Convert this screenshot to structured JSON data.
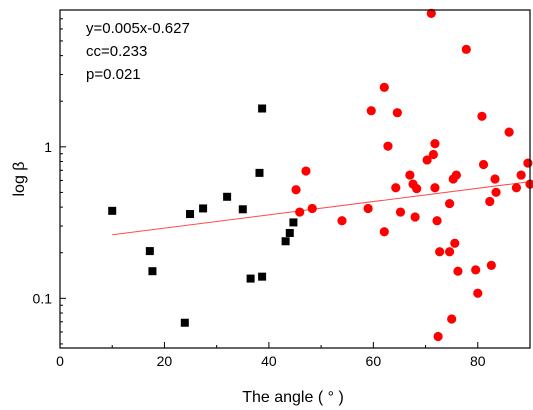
{
  "chart_data": {
    "type": "scatter",
    "xlabel": "The angle ( ° )",
    "ylabel": "log β",
    "xlim": [
      0,
      90
    ],
    "ylim": [
      0.047,
      8.0
    ],
    "y_scale": "log",
    "grid": false,
    "x_ticks": [
      0,
      20,
      40,
      60,
      80
    ],
    "y_ticks": [
      0.1,
      1
    ],
    "x_tick_labels": [
      "0",
      "20",
      "40",
      "60",
      "80"
    ],
    "y_tick_labels": [
      "0.1",
      "1"
    ],
    "annotations": [
      "y=0.005x-0.627",
      "cc=0.233",
      "p=0.021"
    ],
    "fit_line": {
      "x": [
        10,
        90
      ],
      "y": [
        0.263,
        0.589
      ],
      "color": "#ff4d4d"
    },
    "series": [
      {
        "marker": "square",
        "color": "#000000",
        "points": [
          [
            10.0,
            0.378
          ],
          [
            17.2,
            0.205
          ],
          [
            17.7,
            0.151
          ],
          [
            23.9,
            0.069
          ],
          [
            24.9,
            0.36
          ],
          [
            27.4,
            0.392
          ],
          [
            32.0,
            0.468
          ],
          [
            35.0,
            0.387
          ],
          [
            36.5,
            0.135
          ],
          [
            38.2,
            0.673
          ],
          [
            38.7,
            0.139
          ],
          [
            38.7,
            1.79
          ],
          [
            43.2,
            0.238
          ],
          [
            44.0,
            0.27
          ],
          [
            44.7,
            0.317
          ]
        ]
      },
      {
        "marker": "circle",
        "color": "#ff0000",
        "points": [
          [
            45.2,
            0.521
          ],
          [
            45.9,
            0.371
          ],
          [
            47.1,
            0.692
          ],
          [
            48.3,
            0.392
          ],
          [
            54.0,
            0.325
          ],
          [
            59.0,
            0.392
          ],
          [
            59.6,
            1.73
          ],
          [
            62.1,
            0.275
          ],
          [
            62.1,
            2.47
          ],
          [
            62.8,
            1.01
          ],
          [
            64.3,
            0.537
          ],
          [
            64.6,
            1.68
          ],
          [
            65.2,
            0.371
          ],
          [
            67.0,
            0.651
          ],
          [
            67.6,
            0.567
          ],
          [
            68.0,
            0.344
          ],
          [
            68.3,
            0.53
          ],
          [
            70.3,
            0.819
          ],
          [
            71.1,
            7.6
          ],
          [
            71.5,
            0.89
          ],
          [
            71.8,
            1.05
          ],
          [
            71.8,
            0.537
          ],
          [
            72.2,
            0.325
          ],
          [
            72.4,
            0.056
          ],
          [
            72.7,
            0.203
          ],
          [
            74.6,
            0.203
          ],
          [
            74.6,
            0.422
          ],
          [
            75.0,
            0.073
          ],
          [
            75.3,
            0.613
          ],
          [
            75.6,
            0.231
          ],
          [
            75.9,
            0.651
          ],
          [
            76.2,
            0.151
          ],
          [
            77.8,
            4.4
          ],
          [
            79.6,
            0.154
          ],
          [
            80.0,
            0.108
          ],
          [
            80.8,
            1.59
          ],
          [
            81.1,
            0.765
          ],
          [
            82.3,
            0.436
          ],
          [
            82.6,
            0.165
          ],
          [
            83.3,
            0.613
          ],
          [
            83.5,
            0.501
          ],
          [
            86.0,
            1.25
          ],
          [
            87.4,
            0.537
          ],
          [
            88.3,
            0.651
          ],
          [
            89.6,
            0.781
          ],
          [
            90.0,
            0.567
          ]
        ]
      }
    ]
  }
}
